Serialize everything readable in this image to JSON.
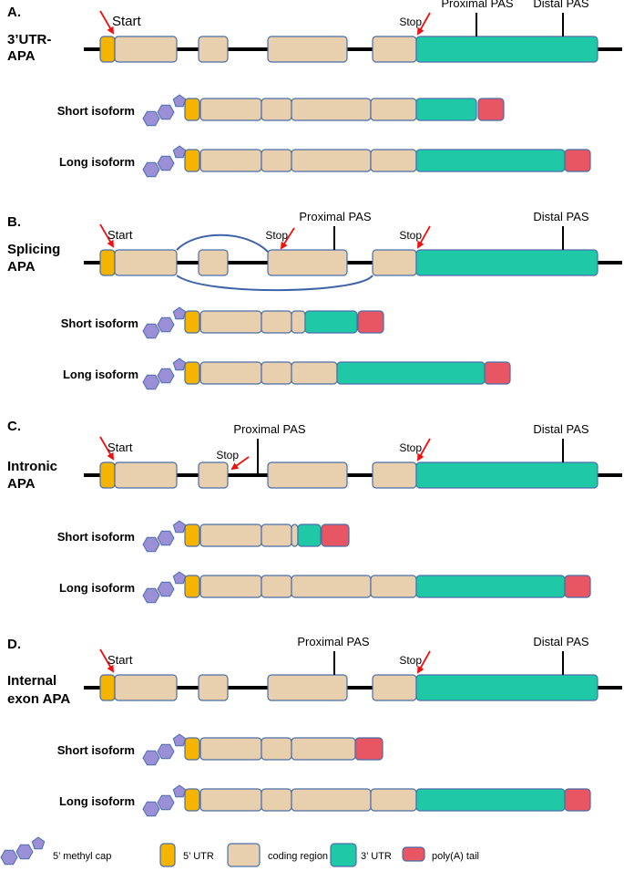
{
  "colors": {
    "utr5": "#F5B400",
    "coding": "#E8CFAE",
    "utr3": "#1FC9A8",
    "polyA": "#E85563",
    "cap": "#9B8FD8",
    "outline": "#4A6EA8",
    "arrow": "#EE1111",
    "backbone": "#000000",
    "splice": "#3F63A8"
  },
  "panels": [
    {
      "letter": "A.",
      "title_lines": [
        "3’UTR-",
        "APA"
      ],
      "gene_labels": {
        "start": "Start",
        "stop": "Stop",
        "proximal_pas": "Proximal PAS",
        "distal_pas": "Distal PAS"
      },
      "short_isoform": "Short isoform",
      "long_isoform": "Long isoform"
    },
    {
      "letter": "B.",
      "title_lines": [
        "Splicing",
        "APA"
      ],
      "gene_labels": {
        "start": "Start",
        "stop_proximal": "Stop",
        "stop": "Stop",
        "proximal_pas": "Proximal PAS",
        "distal_pas": "Distal PAS"
      },
      "short_isoform": "Short isoform",
      "long_isoform": "Long isoform"
    },
    {
      "letter": "C.",
      "title_lines": [
        "Intronic",
        "APA"
      ],
      "gene_labels": {
        "start": "Start",
        "stop_proximal": "Stop",
        "stop": "Stop",
        "proximal_pas": "Proximal PAS",
        "distal_pas": "Distal PAS"
      },
      "short_isoform": "Short isoform",
      "long_isoform": "Long isoform"
    },
    {
      "letter": "D.",
      "title_lines": [
        "Internal",
        "exon APA"
      ],
      "gene_labels": {
        "start": "Start",
        "stop": "Stop",
        "proximal_pas": "Proximal PAS",
        "distal_pas": "Distal PAS"
      },
      "short_isoform": "Short isoform",
      "long_isoform": "Long isoform"
    }
  ],
  "legend": {
    "cap": "5’ methyl cap",
    "utr5": "5’ UTR",
    "coding": "coding region",
    "utr3": "3’ UTR",
    "polyA": "poly(A) tail"
  }
}
